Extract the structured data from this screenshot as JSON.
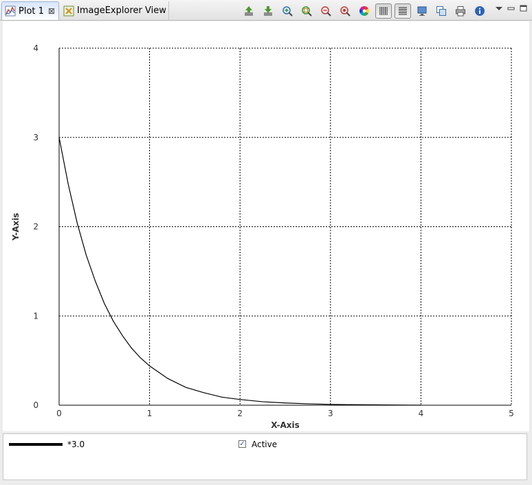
{
  "tabs": [
    {
      "label": "Plot 1",
      "active": true,
      "closable": true,
      "icon": "plot-icon"
    },
    {
      "label": "ImageExplorer View",
      "active": false,
      "closable": false,
      "icon": "image-explorer-icon"
    }
  ],
  "toolbar": {
    "buttons": [
      {
        "name": "export-icon",
        "pressed": false
      },
      {
        "name": "import-icon",
        "pressed": false
      },
      {
        "name": "zoom-in-icon",
        "pressed": false
      },
      {
        "name": "zoom-fit-icon",
        "pressed": false
      },
      {
        "name": "zoom-out-icon",
        "pressed": false
      },
      {
        "name": "zoom-reset-icon",
        "pressed": false
      },
      {
        "name": "color-wheel-icon",
        "pressed": false
      },
      {
        "name": "vertical-grid-icon",
        "pressed": true
      },
      {
        "name": "horizontal-grid-icon",
        "pressed": true
      },
      {
        "name": "monitor-icon",
        "pressed": false
      },
      {
        "name": "copy-icon",
        "pressed": false
      },
      {
        "name": "print-icon",
        "pressed": false
      },
      {
        "name": "info-icon",
        "pressed": false
      }
    ],
    "view_menu": [
      "view-menu-icon",
      "minimize-icon",
      "maximize-icon"
    ]
  },
  "chart_data": {
    "type": "line",
    "title": "",
    "xlabel": "X-Axis",
    "ylabel": "Y-Axis",
    "xlim": [
      0,
      5
    ],
    "ylim": [
      0,
      4
    ],
    "xticks": [
      "0",
      "1",
      "2",
      "3",
      "4",
      "5"
    ],
    "yticks": [
      "0",
      "1",
      "2",
      "3",
      "4"
    ],
    "grid": true,
    "grid_style": "dotted",
    "series": [
      {
        "name": "*3.0",
        "color": "#000000",
        "x": [
          0,
          0.1,
          0.2,
          0.3,
          0.4,
          0.5,
          0.6,
          0.7,
          0.8,
          0.9,
          1.0,
          1.2,
          1.4,
          1.6,
          1.8,
          2.0,
          2.25,
          2.5,
          2.75,
          3.0,
          3.25,
          3.5,
          3.75,
          4.0
        ],
        "y": [
          3.0,
          2.48,
          2.04,
          1.68,
          1.39,
          1.14,
          0.94,
          0.78,
          0.64,
          0.53,
          0.44,
          0.3,
          0.2,
          0.14,
          0.09,
          0.064,
          0.039,
          0.025,
          0.016,
          0.009,
          0.006,
          0.004,
          0.002,
          0.0
        ]
      }
    ]
  },
  "legend": {
    "series_name": "*3.0",
    "active_label": "Active",
    "active_checked": true,
    "check_glyph": "✓"
  }
}
